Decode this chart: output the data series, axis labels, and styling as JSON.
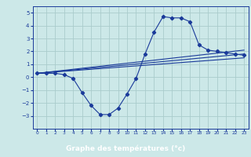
{
  "background_color": "#cce8e8",
  "grid_color": "#aacccc",
  "line_color": "#1a3a9a",
  "xlabel": "Graphe des températures (°c)",
  "xlabel_color": "#ffffff",
  "xlabel_bg": "#2244aa",
  "ylim": [
    -4,
    5.5
  ],
  "xlim": [
    -0.5,
    23.5
  ],
  "yticks": [
    -3,
    -2,
    -1,
    0,
    1,
    2,
    3,
    4,
    5
  ],
  "xticks": [
    0,
    1,
    2,
    3,
    4,
    5,
    6,
    7,
    8,
    9,
    10,
    11,
    12,
    13,
    14,
    15,
    16,
    17,
    18,
    19,
    20,
    21,
    22,
    23
  ],
  "series": {
    "temp_actual": {
      "x": [
        0,
        1,
        2,
        3,
        4,
        5,
        6,
        7,
        8,
        9,
        10,
        11,
        12,
        13,
        14,
        15,
        16,
        17,
        18,
        19,
        20,
        21,
        22,
        23
      ],
      "y": [
        0.3,
        0.3,
        0.3,
        0.2,
        -0.1,
        -1.2,
        -2.2,
        -2.9,
        -2.9,
        -2.4,
        -1.3,
        -0.1,
        1.8,
        3.5,
        4.7,
        4.6,
        4.6,
        4.3,
        2.5,
        2.1,
        2.0,
        1.9,
        1.8,
        1.7
      ]
    },
    "line1": {
      "x": [
        0,
        23
      ],
      "y": [
        0.3,
        2.1
      ]
    },
    "line2": {
      "x": [
        0,
        23
      ],
      "y": [
        0.3,
        1.8
      ]
    },
    "line3": {
      "x": [
        0,
        23
      ],
      "y": [
        0.3,
        1.5
      ]
    }
  }
}
